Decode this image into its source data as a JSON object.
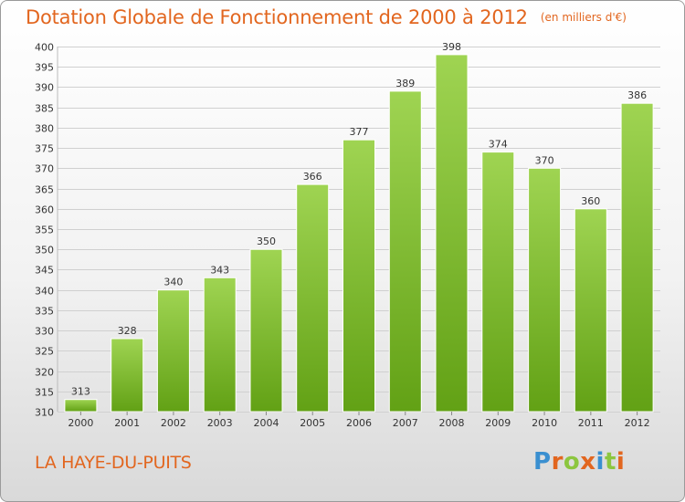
{
  "chart_data": {
    "type": "bar",
    "title": "Dotation Globale de Fonctionnement de 2000 à 2012",
    "subtitle": "(en milliers d'€)",
    "categories": [
      "2000",
      "2001",
      "2002",
      "2003",
      "2004",
      "2005",
      "2006",
      "2007",
      "2008",
      "2009",
      "2010",
      "2011",
      "2012"
    ],
    "values": [
      313,
      328,
      340,
      343,
      350,
      366,
      377,
      389,
      398,
      374,
      370,
      360,
      386
    ],
    "ylim": [
      310,
      400
    ],
    "ytick_step": 5,
    "grid": true,
    "xlabel": "",
    "ylabel": "",
    "bar_color": "#8cc63f",
    "bar_color_dark": "#62a115"
  },
  "footer": {
    "commune": "LA HAYE-DU-PUITS"
  },
  "logo": {
    "text": "Proxiti",
    "letters": [
      {
        "char": "P",
        "color": "#3a8fd0"
      },
      {
        "char": "r",
        "color": "#e2661f"
      },
      {
        "char": "o",
        "color": "#8cc63f"
      },
      {
        "char": "x",
        "color": "#e2661f"
      },
      {
        "char": "i",
        "color": "#3a8fd0"
      },
      {
        "char": "t",
        "color": "#8cc63f"
      },
      {
        "char": "i",
        "color": "#e2661f"
      }
    ]
  },
  "colors": {
    "accent": "#e2661f",
    "grid": "#d0d0d0",
    "axis_text": "#333333"
  }
}
